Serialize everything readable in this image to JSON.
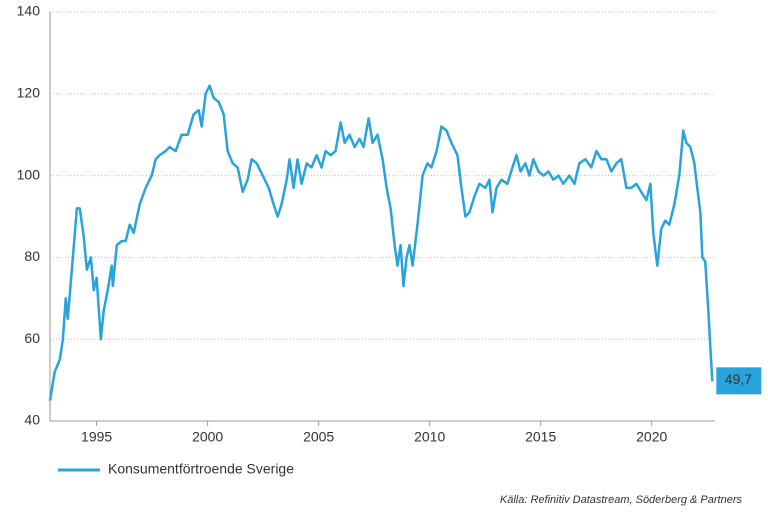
{
  "chart_data": {
    "type": "line",
    "x": [
      1992.9,
      1993.11,
      1993.34,
      1993.48,
      1993.61,
      1993.7,
      1993.93,
      1994.11,
      1994.24,
      1994.42,
      1994.56,
      1994.74,
      1994.87,
      1995.0,
      1995.19,
      1995.32,
      1995.5,
      1995.68,
      1995.73,
      1995.91,
      1996.13,
      1996.31,
      1996.49,
      1996.67,
      1996.94,
      1997.21,
      1997.48,
      1997.66,
      1997.84,
      1998.11,
      1998.29,
      1998.56,
      1998.83,
      1999.1,
      1999.37,
      1999.6,
      1999.73,
      1999.91,
      2000.09,
      2000.27,
      2000.5,
      2000.72,
      2000.9,
      2001.13,
      2001.35,
      2001.58,
      2001.8,
      2001.98,
      2002.21,
      2002.48,
      2002.75,
      2002.97,
      2003.15,
      2003.33,
      2003.56,
      2003.69,
      2003.87,
      2004.05,
      2004.23,
      2004.46,
      2004.68,
      2004.91,
      2005.13,
      2005.31,
      2005.54,
      2005.76,
      2005.99,
      2006.17,
      2006.39,
      2006.62,
      2006.84,
      2007.02,
      2007.25,
      2007.43,
      2007.65,
      2007.88,
      2008.06,
      2008.24,
      2008.42,
      2008.55,
      2008.69,
      2008.82,
      2008.96,
      2009.09,
      2009.23,
      2009.45,
      2009.68,
      2009.9,
      2010.08,
      2010.31,
      2010.53,
      2010.76,
      2010.98,
      2011.25,
      2011.43,
      2011.61,
      2011.79,
      2012.02,
      2012.24,
      2012.51,
      2012.69,
      2012.83,
      2013.01,
      2013.23,
      2013.5,
      2013.73,
      2013.91,
      2014.09,
      2014.31,
      2014.49,
      2014.67,
      2014.9,
      2015.12,
      2015.35,
      2015.57,
      2015.8,
      2016.02,
      2016.29,
      2016.52,
      2016.74,
      2017.01,
      2017.28,
      2017.51,
      2017.73,
      2017.96,
      2018.18,
      2018.41,
      2018.63,
      2018.86,
      2019.08,
      2019.31,
      2019.53,
      2019.76,
      2019.94,
      2020.07,
      2020.25,
      2020.43,
      2020.61,
      2020.79,
      2021.02,
      2021.24,
      2021.42,
      2021.56,
      2021.74,
      2021.92,
      2022.05,
      2022.19,
      2022.28,
      2022.41,
      2022.55,
      2022.64,
      2022.73
    ],
    "series": [
      {
        "name": "Konsumentförtroende Sverige",
        "color": "#29a3dc",
        "values": [
          45,
          52,
          55,
          60,
          70,
          65,
          80,
          92,
          92,
          85,
          77,
          80,
          72,
          75,
          60,
          67,
          72,
          78,
          73,
          83,
          84,
          84,
          88,
          86,
          93,
          97,
          100,
          104,
          105,
          106,
          107,
          106,
          110,
          110,
          115,
          116,
          112,
          120,
          122,
          119,
          118,
          115,
          106,
          103,
          102,
          96,
          99,
          104,
          103,
          100,
          97,
          93,
          90,
          93,
          99,
          104,
          97,
          104,
          98,
          103,
          102,
          105,
          102,
          106,
          105,
          106,
          113,
          108,
          110,
          107,
          109,
          107,
          114,
          108,
          110,
          104,
          97,
          92,
          83,
          78,
          83,
          73,
          80,
          83,
          78,
          88,
          100,
          103,
          102,
          106,
          112,
          111,
          108,
          105,
          97,
          90,
          91,
          95,
          98,
          97,
          99,
          91,
          97,
          99,
          98,
          102,
          105,
          101,
          103,
          100,
          104,
          101,
          100,
          101,
          99,
          100,
          98,
          100,
          98,
          103,
          104,
          102,
          106,
          104,
          104,
          101,
          103,
          104,
          97,
          97,
          98,
          96,
          94,
          98,
          86,
          78,
          87,
          89,
          88,
          93,
          100,
          111,
          108,
          107,
          103,
          97,
          91,
          80,
          79,
          67,
          58,
          49.7
        ]
      }
    ],
    "xlim": [
      1992.9,
      2022.85
    ],
    "xticks": [
      1995,
      2000,
      2005,
      2010,
      2015,
      2020
    ],
    "ylim": [
      40,
      140
    ],
    "yticks": [
      40,
      60,
      80,
      100,
      120,
      140
    ],
    "grid": true,
    "annotation": {
      "x": 2022.73,
      "y": 49.7,
      "label": "49,7"
    },
    "source": "Källa: Refinitiv Datastream, Söderberg & Partners"
  }
}
